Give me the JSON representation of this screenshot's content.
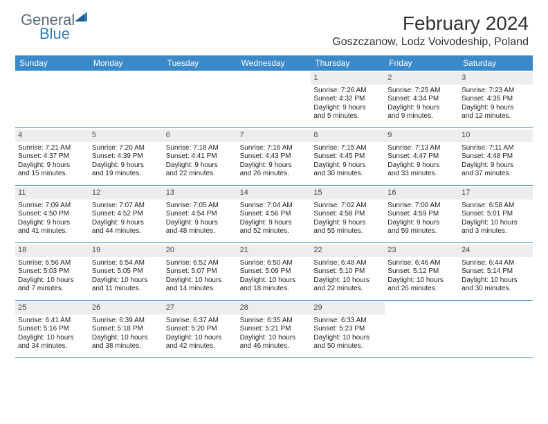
{
  "brand": {
    "part1": "General",
    "part2": "Blue"
  },
  "title": "February 2024",
  "location": "Goszczanow, Lodz Voivodeship, Poland",
  "colors": {
    "header_bg": "#3b89c9",
    "header_text": "#ffffff",
    "daynum_bg": "#ededed",
    "divider": "#3b89c9",
    "logo_gray": "#5a6a78",
    "logo_blue": "#2f7fc1"
  },
  "days_of_week": [
    "Sunday",
    "Monday",
    "Tuesday",
    "Wednesday",
    "Thursday",
    "Friday",
    "Saturday"
  ],
  "weeks": [
    [
      {
        "n": "",
        "sr": "",
        "ss": "",
        "d1": "",
        "d2": ""
      },
      {
        "n": "",
        "sr": "",
        "ss": "",
        "d1": "",
        "d2": ""
      },
      {
        "n": "",
        "sr": "",
        "ss": "",
        "d1": "",
        "d2": ""
      },
      {
        "n": "",
        "sr": "",
        "ss": "",
        "d1": "",
        "d2": ""
      },
      {
        "n": "1",
        "sr": "Sunrise: 7:26 AM",
        "ss": "Sunset: 4:32 PM",
        "d1": "Daylight: 9 hours",
        "d2": "and 5 minutes."
      },
      {
        "n": "2",
        "sr": "Sunrise: 7:25 AM",
        "ss": "Sunset: 4:34 PM",
        "d1": "Daylight: 9 hours",
        "d2": "and 9 minutes."
      },
      {
        "n": "3",
        "sr": "Sunrise: 7:23 AM",
        "ss": "Sunset: 4:35 PM",
        "d1": "Daylight: 9 hours",
        "d2": "and 12 minutes."
      }
    ],
    [
      {
        "n": "4",
        "sr": "Sunrise: 7:21 AM",
        "ss": "Sunset: 4:37 PM",
        "d1": "Daylight: 9 hours",
        "d2": "and 15 minutes."
      },
      {
        "n": "5",
        "sr": "Sunrise: 7:20 AM",
        "ss": "Sunset: 4:39 PM",
        "d1": "Daylight: 9 hours",
        "d2": "and 19 minutes."
      },
      {
        "n": "6",
        "sr": "Sunrise: 7:18 AM",
        "ss": "Sunset: 4:41 PM",
        "d1": "Daylight: 9 hours",
        "d2": "and 22 minutes."
      },
      {
        "n": "7",
        "sr": "Sunrise: 7:16 AM",
        "ss": "Sunset: 4:43 PM",
        "d1": "Daylight: 9 hours",
        "d2": "and 26 minutes."
      },
      {
        "n": "8",
        "sr": "Sunrise: 7:15 AM",
        "ss": "Sunset: 4:45 PM",
        "d1": "Daylight: 9 hours",
        "d2": "and 30 minutes."
      },
      {
        "n": "9",
        "sr": "Sunrise: 7:13 AM",
        "ss": "Sunset: 4:47 PM",
        "d1": "Daylight: 9 hours",
        "d2": "and 33 minutes."
      },
      {
        "n": "10",
        "sr": "Sunrise: 7:11 AM",
        "ss": "Sunset: 4:48 PM",
        "d1": "Daylight: 9 hours",
        "d2": "and 37 minutes."
      }
    ],
    [
      {
        "n": "11",
        "sr": "Sunrise: 7:09 AM",
        "ss": "Sunset: 4:50 PM",
        "d1": "Daylight: 9 hours",
        "d2": "and 41 minutes."
      },
      {
        "n": "12",
        "sr": "Sunrise: 7:07 AM",
        "ss": "Sunset: 4:52 PM",
        "d1": "Daylight: 9 hours",
        "d2": "and 44 minutes."
      },
      {
        "n": "13",
        "sr": "Sunrise: 7:05 AM",
        "ss": "Sunset: 4:54 PM",
        "d1": "Daylight: 9 hours",
        "d2": "and 48 minutes."
      },
      {
        "n": "14",
        "sr": "Sunrise: 7:04 AM",
        "ss": "Sunset: 4:56 PM",
        "d1": "Daylight: 9 hours",
        "d2": "and 52 minutes."
      },
      {
        "n": "15",
        "sr": "Sunrise: 7:02 AM",
        "ss": "Sunset: 4:58 PM",
        "d1": "Daylight: 9 hours",
        "d2": "and 55 minutes."
      },
      {
        "n": "16",
        "sr": "Sunrise: 7:00 AM",
        "ss": "Sunset: 4:59 PM",
        "d1": "Daylight: 9 hours",
        "d2": "and 59 minutes."
      },
      {
        "n": "17",
        "sr": "Sunrise: 6:58 AM",
        "ss": "Sunset: 5:01 PM",
        "d1": "Daylight: 10 hours",
        "d2": "and 3 minutes."
      }
    ],
    [
      {
        "n": "18",
        "sr": "Sunrise: 6:56 AM",
        "ss": "Sunset: 5:03 PM",
        "d1": "Daylight: 10 hours",
        "d2": "and 7 minutes."
      },
      {
        "n": "19",
        "sr": "Sunrise: 6:54 AM",
        "ss": "Sunset: 5:05 PM",
        "d1": "Daylight: 10 hours",
        "d2": "and 11 minutes."
      },
      {
        "n": "20",
        "sr": "Sunrise: 6:52 AM",
        "ss": "Sunset: 5:07 PM",
        "d1": "Daylight: 10 hours",
        "d2": "and 14 minutes."
      },
      {
        "n": "21",
        "sr": "Sunrise: 6:50 AM",
        "ss": "Sunset: 5:09 PM",
        "d1": "Daylight: 10 hours",
        "d2": "and 18 minutes."
      },
      {
        "n": "22",
        "sr": "Sunrise: 6:48 AM",
        "ss": "Sunset: 5:10 PM",
        "d1": "Daylight: 10 hours",
        "d2": "and 22 minutes."
      },
      {
        "n": "23",
        "sr": "Sunrise: 6:46 AM",
        "ss": "Sunset: 5:12 PM",
        "d1": "Daylight: 10 hours",
        "d2": "and 26 minutes."
      },
      {
        "n": "24",
        "sr": "Sunrise: 6:44 AM",
        "ss": "Sunset: 5:14 PM",
        "d1": "Daylight: 10 hours",
        "d2": "and 30 minutes."
      }
    ],
    [
      {
        "n": "25",
        "sr": "Sunrise: 6:41 AM",
        "ss": "Sunset: 5:16 PM",
        "d1": "Daylight: 10 hours",
        "d2": "and 34 minutes."
      },
      {
        "n": "26",
        "sr": "Sunrise: 6:39 AM",
        "ss": "Sunset: 5:18 PM",
        "d1": "Daylight: 10 hours",
        "d2": "and 38 minutes."
      },
      {
        "n": "27",
        "sr": "Sunrise: 6:37 AM",
        "ss": "Sunset: 5:20 PM",
        "d1": "Daylight: 10 hours",
        "d2": "and 42 minutes."
      },
      {
        "n": "28",
        "sr": "Sunrise: 6:35 AM",
        "ss": "Sunset: 5:21 PM",
        "d1": "Daylight: 10 hours",
        "d2": "and 46 minutes."
      },
      {
        "n": "29",
        "sr": "Sunrise: 6:33 AM",
        "ss": "Sunset: 5:23 PM",
        "d1": "Daylight: 10 hours",
        "d2": "and 50 minutes."
      },
      {
        "n": "",
        "sr": "",
        "ss": "",
        "d1": "",
        "d2": ""
      },
      {
        "n": "",
        "sr": "",
        "ss": "",
        "d1": "",
        "d2": ""
      }
    ]
  ]
}
